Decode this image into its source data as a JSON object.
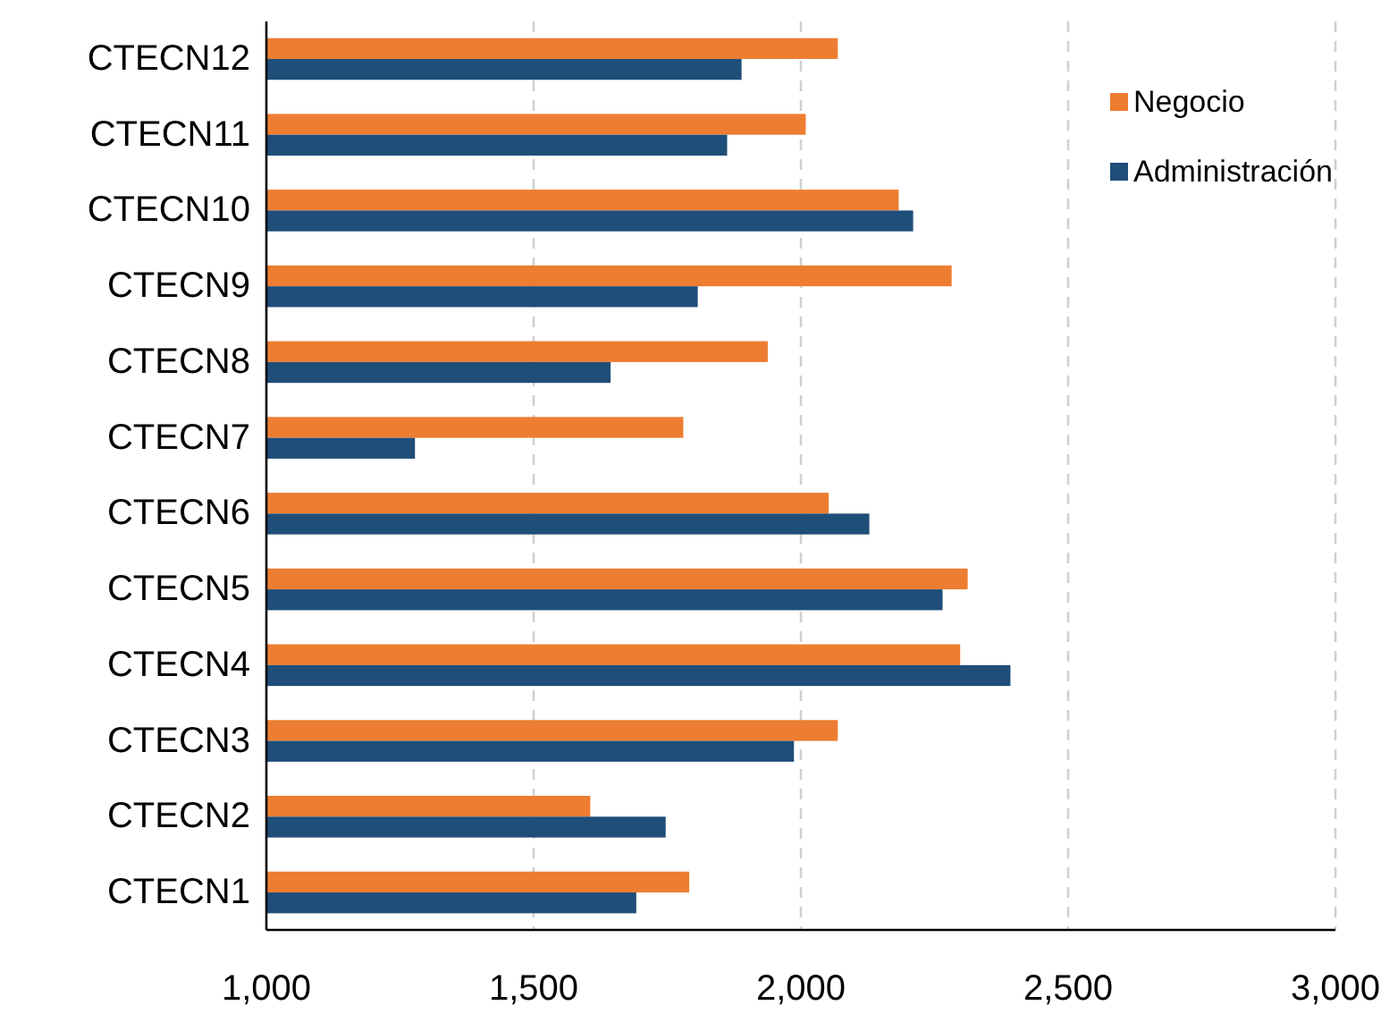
{
  "chart_data": {
    "type": "bar",
    "orientation": "horizontal",
    "categories": [
      "CTECN12",
      "CTECN11",
      "CTECN10",
      "CTECN9",
      "CTECN8",
      "CTECN7",
      "CTECN6",
      "CTECN5",
      "CTECN4",
      "CTECN3",
      "CTECN2",
      "CTECN1"
    ],
    "series": [
      {
        "name": "Negocio",
        "color": "#ed7d31",
        "values": [
          2069,
          2009,
          2183,
          2282,
          1938,
          1780,
          2052,
          2312,
          2298,
          2069,
          1606,
          1791
        ]
      },
      {
        "name": "Administración",
        "color": "#1f4e79",
        "values": [
          1889,
          1862,
          2210,
          1807,
          1644,
          1278,
          2128,
          2265,
          2392,
          1987,
          1747,
          1692
        ]
      }
    ],
    "xlim": [
      1000,
      3000
    ],
    "xticks": [
      {
        "value": 1000,
        "label": "1,000"
      },
      {
        "value": 1500,
        "label": "1,500"
      },
      {
        "value": 2000,
        "label": "2,000"
      },
      {
        "value": 2500,
        "label": "2,500"
      },
      {
        "value": 3000,
        "label": "3,000"
      }
    ],
    "grid": "x",
    "legend": "top right"
  }
}
